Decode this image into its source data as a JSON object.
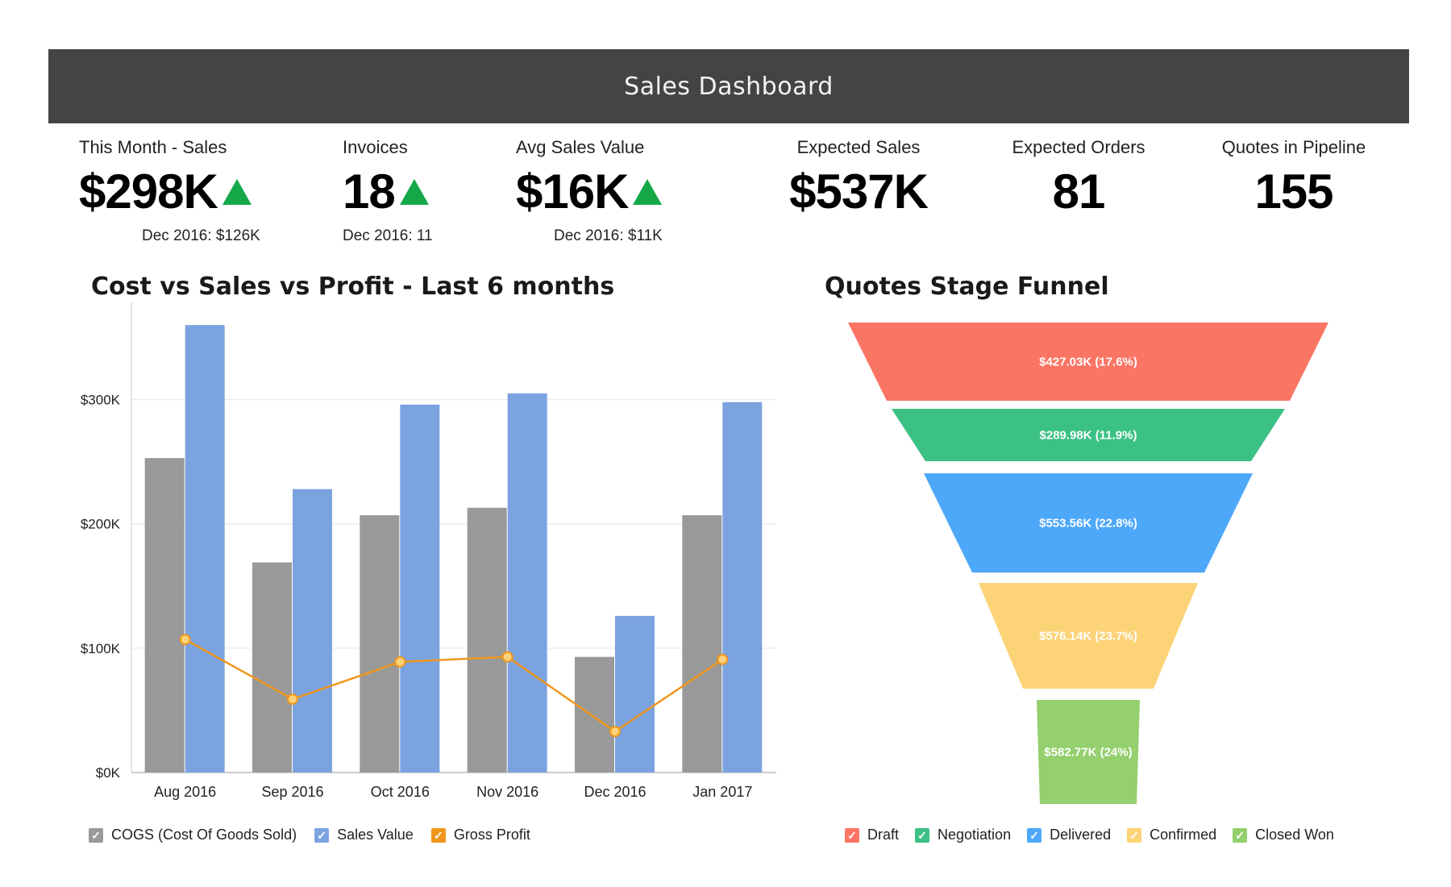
{
  "header": {
    "title": "Sales Dashboard"
  },
  "kpis": [
    {
      "label": "This Month - Sales",
      "value": "$298K",
      "trend": "up",
      "sub": "Dec 2016: $126K"
    },
    {
      "label": "Invoices",
      "value": "18",
      "trend": "up",
      "sub": "Dec 2016: 11"
    },
    {
      "label": "Avg Sales Value",
      "value": "$16K",
      "trend": "up",
      "sub": "Dec 2016: $11K"
    },
    {
      "label": "Expected Sales",
      "value": "$537K"
    },
    {
      "label": "Expected Orders",
      "value": "81"
    },
    {
      "label": "Quotes in Pipeline",
      "value": "155"
    }
  ],
  "colors": {
    "trend_up": "#14a849",
    "header_bg": "#444444"
  },
  "chart_data": [
    {
      "type": "bar",
      "title": "Cost vs Sales vs Profit - Last 6 months",
      "categories": [
        "Aug 2016",
        "Sep 2016",
        "Oct 2016",
        "Nov 2016",
        "Dec 2016",
        "Jan 2017"
      ],
      "series": [
        {
          "name": "COGS (Cost Of Goods Sold)",
          "type": "bar",
          "color": "#999999",
          "values": [
            253000,
            169000,
            207000,
            213000,
            93000,
            207000
          ]
        },
        {
          "name": "Sales Value",
          "type": "bar",
          "color": "#7ba3e0",
          "values": [
            360000,
            228000,
            296000,
            305000,
            126000,
            298000
          ]
        },
        {
          "name": "Gross Profit",
          "type": "line",
          "color": "#f0961c",
          "values": [
            107000,
            59000,
            89000,
            93000,
            33000,
            91000
          ]
        }
      ],
      "yticks": [
        "$0K",
        "$100K",
        "$200K",
        "$300K"
      ],
      "ytick_values": [
        0,
        100000,
        200000,
        300000
      ],
      "ylim": [
        0,
        375000
      ],
      "grid": true,
      "legend_position": "bottom"
    },
    {
      "type": "funnel",
      "title": "Quotes Stage Funnel",
      "stages": [
        {
          "name": "Draft",
          "label": "$427.03K (17.6%)",
          "value": 427.03,
          "percent": 17.6,
          "color": "#fb7565"
        },
        {
          "name": "Negotiation",
          "label": "$289.98K (11.9%)",
          "value": 289.98,
          "percent": 11.9,
          "color": "#3cc185"
        },
        {
          "name": "Delivered",
          "label": "$553.56K (22.8%)",
          "value": 553.56,
          "percent": 22.8,
          "color": "#4ea8fa"
        },
        {
          "name": "Confirmed",
          "label": "$576.14K (23.7%)",
          "value": 576.14,
          "percent": 23.7,
          "color": "#fcd377"
        },
        {
          "name": "Closed Won",
          "label": "$582.77K (24%)",
          "value": 582.77,
          "percent": 24,
          "color": "#94d06e"
        }
      ],
      "legend_position": "bottom"
    }
  ]
}
